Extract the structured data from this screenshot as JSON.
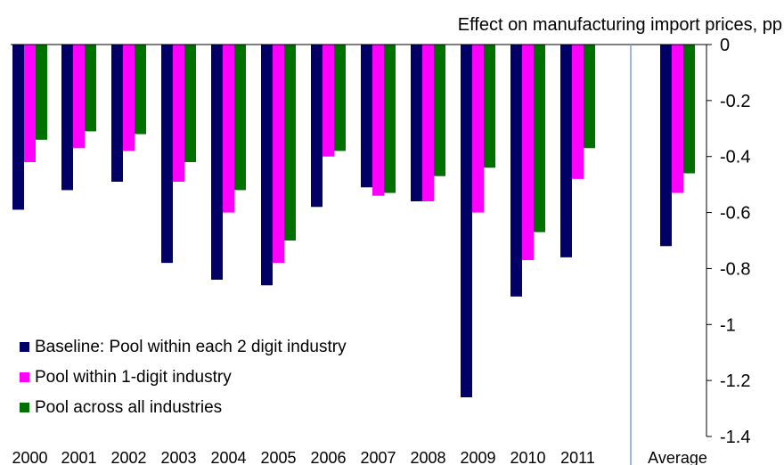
{
  "chart_data": {
    "type": "bar",
    "title": "Effect on manufacturing import prices, pp",
    "xlabel": "",
    "ylabel": "",
    "ylim": [
      -1.4,
      0
    ],
    "yticks": [
      "0",
      "-0.2",
      "-0.4",
      "-0.6",
      "-0.8",
      "-1",
      "-1.2",
      "-1.4"
    ],
    "categories": [
      "2000",
      "2001",
      "2002",
      "2003",
      "2004",
      "2005",
      "2006",
      "2007",
      "2008",
      "2009",
      "2010",
      "2011",
      "Average"
    ],
    "series": [
      {
        "name": "Baseline: Pool within each 2 digit industry",
        "color": "#000066",
        "values": [
          -0.59,
          -0.52,
          -0.49,
          -0.78,
          -0.84,
          -0.86,
          -0.58,
          -0.51,
          -0.56,
          -1.26,
          -0.9,
          -0.76,
          -0.72
        ]
      },
      {
        "name": "Pool within 1-digit industry",
        "color": "#ff00ff",
        "values": [
          -0.42,
          -0.37,
          -0.38,
          -0.49,
          -0.6,
          -0.78,
          -0.4,
          -0.54,
          -0.56,
          -0.6,
          -0.77,
          -0.48,
          -0.53
        ]
      },
      {
        "name": "Pool across all industries",
        "color": "#007000",
        "values": [
          -0.34,
          -0.31,
          -0.32,
          -0.42,
          -0.52,
          -0.7,
          -0.38,
          -0.53,
          -0.47,
          -0.44,
          -0.67,
          -0.37,
          -0.46
        ]
      }
    ],
    "separator_after_category": "2011",
    "legend_position": "bottom-left",
    "grid": false
  }
}
